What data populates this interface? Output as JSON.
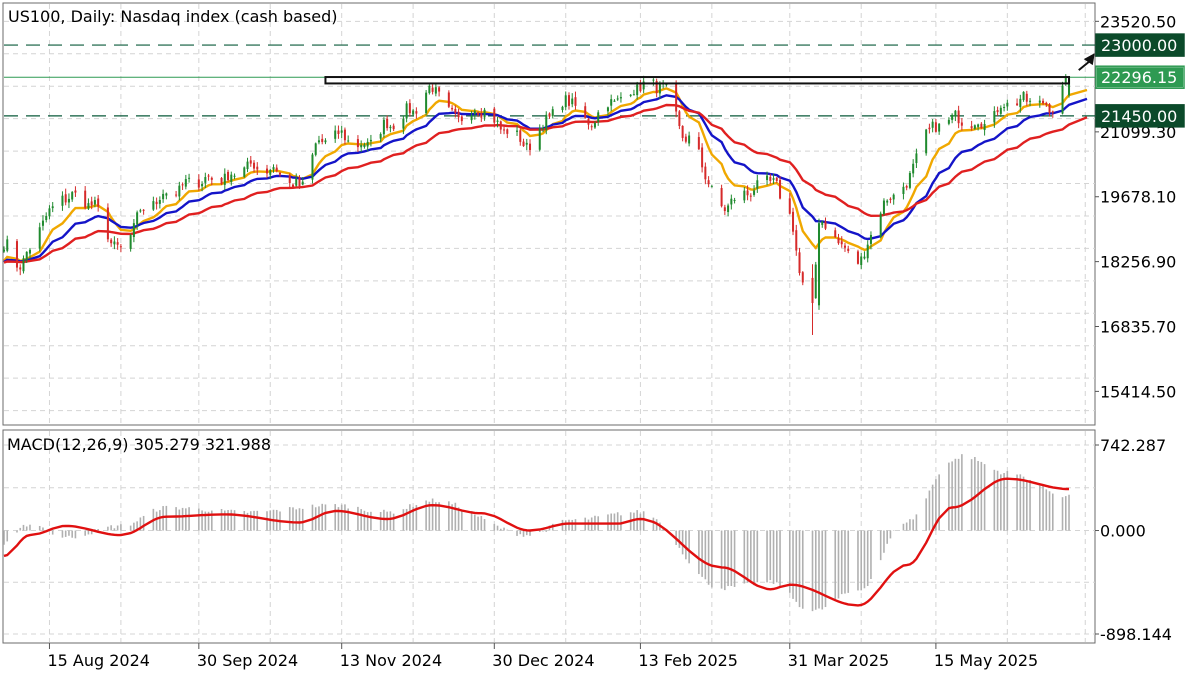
{
  "title": "US100, Daily:  Nasdaq index (cash based)",
  "colors": {
    "bull": "#1f8a2e",
    "bear": "#d62a2a",
    "ma_fast": "#f0a800",
    "ma_mid": "#1414c8",
    "ma_slow": "#e02020",
    "grid": "#d4d4d4",
    "level": "#0a5a3a",
    "macd_signal": "#e01010",
    "macd_hist": "#b0b0b0",
    "badge_bg": "#0b4a2a",
    "badge_text": "#ffffff"
  },
  "price_axis": {
    "ticks": [
      "23520.50",
      "21099.30",
      "19678.10",
      "18256.90",
      "16835.70",
      "15414.50"
    ],
    "badges": [
      "23000.00",
      "22296.15",
      "21450.00"
    ]
  },
  "date_axis": [
    "15 Aug 2024",
    "30 Sep 2024",
    "13 Nov 2024",
    "30 Dec 2024",
    "13 Feb 2025",
    "31 Mar 2025",
    "15 May 2025"
  ],
  "macd": {
    "label": "MACD(12,26,9) 305.279 321.988",
    "axis_ticks": [
      "742.287",
      "0.000",
      "-898.144"
    ]
  },
  "chart_data": [
    {
      "type": "candlestick",
      "title": "US100, Daily:  Nasdaq index (cash based)",
      "ylim": [
        14700,
        23900
      ],
      "x_range": [
        "2024-08-01",
        "2025-07-03"
      ],
      "overlays": {
        "horizontal_levels": [
          23000.0,
          22296.15,
          21450.0
        ],
        "resistance_box": {
          "from": "2024-11-08",
          "to": "2025-06-25",
          "low": 22160,
          "high": 22300
        },
        "target_arrow": {
          "from": 22320,
          "to": 23000
        }
      },
      "close_anchors": [
        [
          "2024-08-01",
          18650
        ],
        [
          "2024-08-05",
          18150
        ],
        [
          "2024-08-09",
          18500
        ],
        [
          "2024-08-15",
          19350
        ],
        [
          "2024-08-21",
          19700
        ],
        [
          "2024-08-27",
          19550
        ],
        [
          "2024-09-06",
          18500
        ],
        [
          "2024-09-13",
          19400
        ],
        [
          "2024-09-20",
          19750
        ],
        [
          "2024-09-30",
          20050
        ],
        [
          "2024-10-08",
          20100
        ],
        [
          "2024-10-15",
          20350
        ],
        [
          "2024-10-22",
          20300
        ],
        [
          "2024-10-31",
          19900
        ],
        [
          "2024-11-06",
          20850
        ],
        [
          "2024-11-11",
          21050
        ],
        [
          "2024-11-20",
          20800
        ],
        [
          "2024-11-27",
          21250
        ],
        [
          "2024-12-04",
          21550
        ],
        [
          "2024-12-11",
          22050
        ],
        [
          "2024-12-18",
          21400
        ],
        [
          "2024-12-26",
          21600
        ],
        [
          "2025-01-02",
          21150
        ],
        [
          "2025-01-10",
          20800
        ],
        [
          "2025-01-16",
          21450
        ],
        [
          "2025-01-22",
          21800
        ],
        [
          "2025-01-27",
          21300
        ],
        [
          "2025-02-06",
          21800
        ],
        [
          "2025-02-13",
          22100
        ],
        [
          "2025-02-19",
          22100
        ],
        [
          "2025-02-28",
          20900
        ],
        [
          "2025-03-10",
          19450
        ],
        [
          "2025-03-19",
          19800
        ],
        [
          "2025-03-25",
          20050
        ],
        [
          "2025-03-31",
          19300
        ],
        [
          "2025-04-04",
          17700
        ],
        [
          "2025-04-07",
          17400
        ],
        [
          "2025-04-09",
          19100
        ],
        [
          "2025-04-21",
          18300
        ],
        [
          "2025-04-30",
          19600
        ],
        [
          "2025-05-06",
          20000
        ],
        [
          "2025-05-12",
          21100
        ],
        [
          "2025-05-20",
          21400
        ],
        [
          "2025-05-30",
          21300
        ],
        [
          "2025-06-06",
          21750
        ],
        [
          "2025-06-12",
          21800
        ],
        [
          "2025-06-20",
          21650
        ],
        [
          "2025-06-24",
          22100
        ],
        [
          "2025-06-25",
          22250
        ]
      ],
      "moving_averages": [
        {
          "role": "fast",
          "color": "#f0a800",
          "period_days": 10
        },
        {
          "role": "mid",
          "color": "#1414c8",
          "period_days": 20
        },
        {
          "role": "slow",
          "color": "#e02020",
          "period_days": 40
        }
      ]
    },
    {
      "type": "line",
      "title": "MACD(12,26,9) 305.279 321.988",
      "ylim": [
        -898.144,
        742.287
      ],
      "signal_anchors": [
        [
          "2024-08-01",
          -220
        ],
        [
          "2024-08-09",
          -40
        ],
        [
          "2024-08-20",
          40
        ],
        [
          "2024-09-06",
          -40
        ],
        [
          "2024-09-20",
          120
        ],
        [
          "2024-10-08",
          140
        ],
        [
          "2024-10-31",
          70
        ],
        [
          "2024-11-11",
          170
        ],
        [
          "2024-11-27",
          100
        ],
        [
          "2024-12-11",
          220
        ],
        [
          "2024-12-26",
          150
        ],
        [
          "2025-01-10",
          0
        ],
        [
          "2025-01-22",
          60
        ],
        [
          "2025-02-06",
          60
        ],
        [
          "2025-02-13",
          100
        ],
        [
          "2025-03-10",
          -320
        ],
        [
          "2025-03-25",
          -510
        ],
        [
          "2025-03-31",
          -470
        ],
        [
          "2025-04-21",
          -650
        ],
        [
          "2025-05-06",
          -300
        ],
        [
          "2025-05-20",
          200
        ],
        [
          "2025-06-06",
          450
        ],
        [
          "2025-06-25",
          360
        ]
      ],
      "histogram_anchors": [
        [
          "2024-08-01",
          -120
        ],
        [
          "2024-08-09",
          60
        ],
        [
          "2024-08-20",
          -60
        ],
        [
          "2024-09-06",
          40
        ],
        [
          "2024-09-20",
          200
        ],
        [
          "2024-10-15",
          160
        ],
        [
          "2024-11-11",
          220
        ],
        [
          "2024-11-27",
          160
        ],
        [
          "2024-12-11",
          260
        ],
        [
          "2025-01-10",
          -40
        ],
        [
          "2025-01-22",
          90
        ],
        [
          "2025-02-13",
          160
        ],
        [
          "2025-03-10",
          -500
        ],
        [
          "2025-03-25",
          -450
        ],
        [
          "2025-04-07",
          -700
        ],
        [
          "2025-04-21",
          -520
        ],
        [
          "2025-05-06",
          80
        ],
        [
          "2025-05-20",
          600
        ],
        [
          "2025-05-23",
          650
        ],
        [
          "2025-06-06",
          500
        ],
        [
          "2025-06-25",
          300
        ]
      ]
    }
  ]
}
